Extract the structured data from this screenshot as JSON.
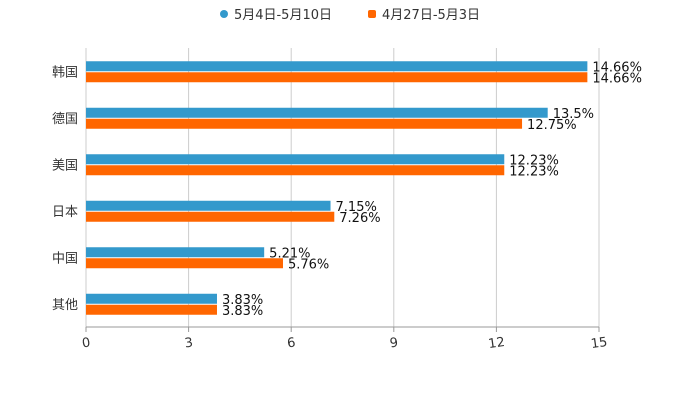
{
  "chart_data": {
    "type": "bar",
    "orientation": "horizontal",
    "categories": [
      "韩国",
      "德国",
      "美国",
      "日本",
      "中国",
      "其他"
    ],
    "series": [
      {
        "name": "5月4日-5月10日",
        "color": "#3399cc",
        "values": [
          14.66,
          13.5,
          12.23,
          7.15,
          5.21,
          3.83
        ],
        "labels": [
          "14.66%",
          "13.5%",
          "12.23%",
          "7.15%",
          "5.21%",
          "3.83%"
        ]
      },
      {
        "name": "4月27日-5月3日",
        "color": "#ff6600",
        "values": [
          14.66,
          12.75,
          12.23,
          7.26,
          5.76,
          3.83
        ],
        "labels": [
          "14.66%",
          "12.75%",
          "12.23%",
          "7.26%",
          "5.76%",
          "3.83%"
        ]
      }
    ],
    "xlim": [
      0,
      15
    ],
    "xticks": [
      "0",
      "3",
      "6",
      "9",
      "12",
      "15"
    ],
    "grid": true,
    "legend": "top-center"
  }
}
